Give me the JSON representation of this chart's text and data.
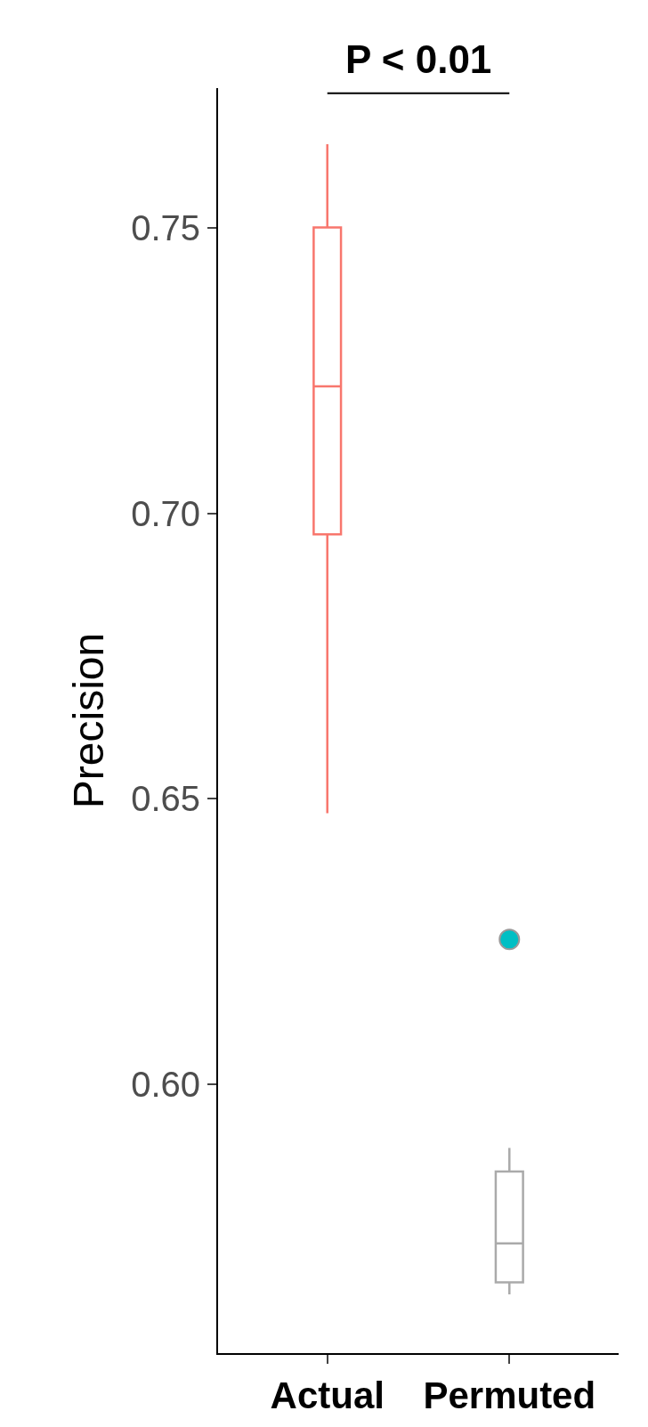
{
  "chart_data": {
    "type": "box",
    "categories": [
      "Actual",
      "Permuted"
    ],
    "ylabel": "Precision",
    "ylim": [
      0.553,
      0.7744
    ],
    "yticks": [
      {
        "value": 0.6,
        "label": "0.60"
      },
      {
        "value": 0.65,
        "label": "0.65"
      },
      {
        "value": 0.7,
        "label": "0.70"
      },
      {
        "value": 0.75,
        "label": "0.75"
      }
    ],
    "annotations": [
      "P < 0.01"
    ],
    "series": [
      {
        "colors": [
          "#f8766d",
          "#aaaaaa"
        ],
        "boxes": [
          {
            "low": 0.6475,
            "q1": 0.6963,
            "median": 0.7222,
            "q3": 0.75,
            "high": 0.7646
          },
          {
            "low": 0.5633,
            "q1": 0.5654,
            "median": 0.5722,
            "q3": 0.5848,
            "high": 0.5889
          }
        ]
      },
      {
        "type": "scatter",
        "x": [
          "Permuted"
        ],
        "values": [
          0.6254
        ],
        "color": "#00bfc4"
      }
    ]
  }
}
